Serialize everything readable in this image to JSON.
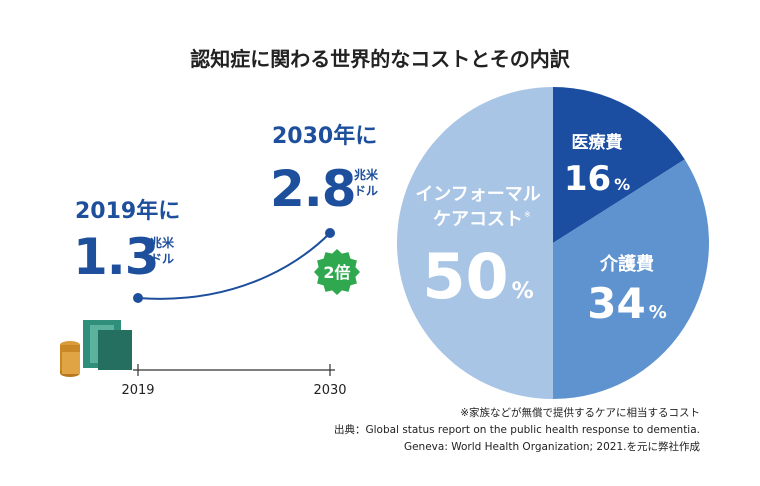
{
  "chart_data": [
    {
      "type": "line",
      "title": "認知症に関わる世界的なコストとその内訳",
      "x": [
        2019,
        2030
      ],
      "values": [
        1.3,
        2.8
      ],
      "point_headers": [
        "2019年に",
        "2030年に"
      ],
      "unit_lines": [
        "兆米",
        "ドル"
      ],
      "annotation": "2倍",
      "color": "#1d4f9c",
      "badge_color": "#2fa84f"
    },
    {
      "type": "pie",
      "labels": [
        [
          "医療費"
        ],
        [
          "介護費"
        ],
        [
          "インフォーマル",
          "ケアコスト"
        ]
      ],
      "values": [
        16,
        34,
        50
      ],
      "unit": "%",
      "footnote_marker": "※",
      "colors": [
        "#1b4ea0",
        "#5f93cf",
        "#a8c5e6"
      ]
    }
  ],
  "footnotes": [
    "※家族などが無償で提供するケアに相当するコスト",
    "出典：Global status report on the public health response to dementia.",
    "Geneva: World Health Organization; 2021.を元に弊社作成"
  ]
}
